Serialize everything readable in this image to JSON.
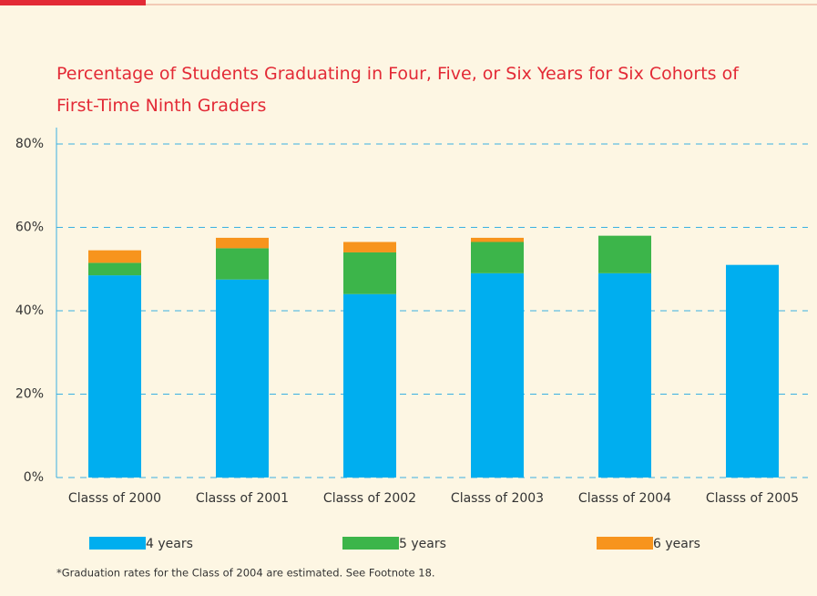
{
  "chart_data": {
    "type": "stacked_bar",
    "title": "Percentage of Students Graduating in Four, Five, or Six Years for Six Cohorts of First-Time Ninth Graders",
    "categories": [
      "Classs of 2000",
      "Classs of 2001",
      "Classs of 2002",
      "Classs of 2003",
      "Classs of 2004",
      "Classs of 2005"
    ],
    "series": [
      {
        "name": "4 years",
        "color": "#00aeef",
        "values": [
          48.5,
          47.5,
          44,
          49,
          49,
          51
        ]
      },
      {
        "name": "5 years",
        "color": "#3cb54a",
        "values": [
          3,
          7.5,
          10,
          7.5,
          9,
          0
        ]
      },
      {
        "name": "6 years",
        "color": "#f7941d",
        "values": [
          3,
          2.5,
          2.5,
          1,
          0,
          0
        ]
      }
    ],
    "ylim": [
      0,
      80
    ],
    "yticks": [
      {
        "value": 0,
        "label": "0%"
      },
      {
        "value": 20,
        "label": "20%"
      },
      {
        "value": 40,
        "label": "40%"
      },
      {
        "value": 60,
        "label": "60%"
      },
      {
        "value": 80,
        "label": "80%"
      }
    ],
    "grid": true,
    "legend": "bottom",
    "note": "*Graduation rates for the Class of 2004 are estimated. See Footnote 18."
  }
}
